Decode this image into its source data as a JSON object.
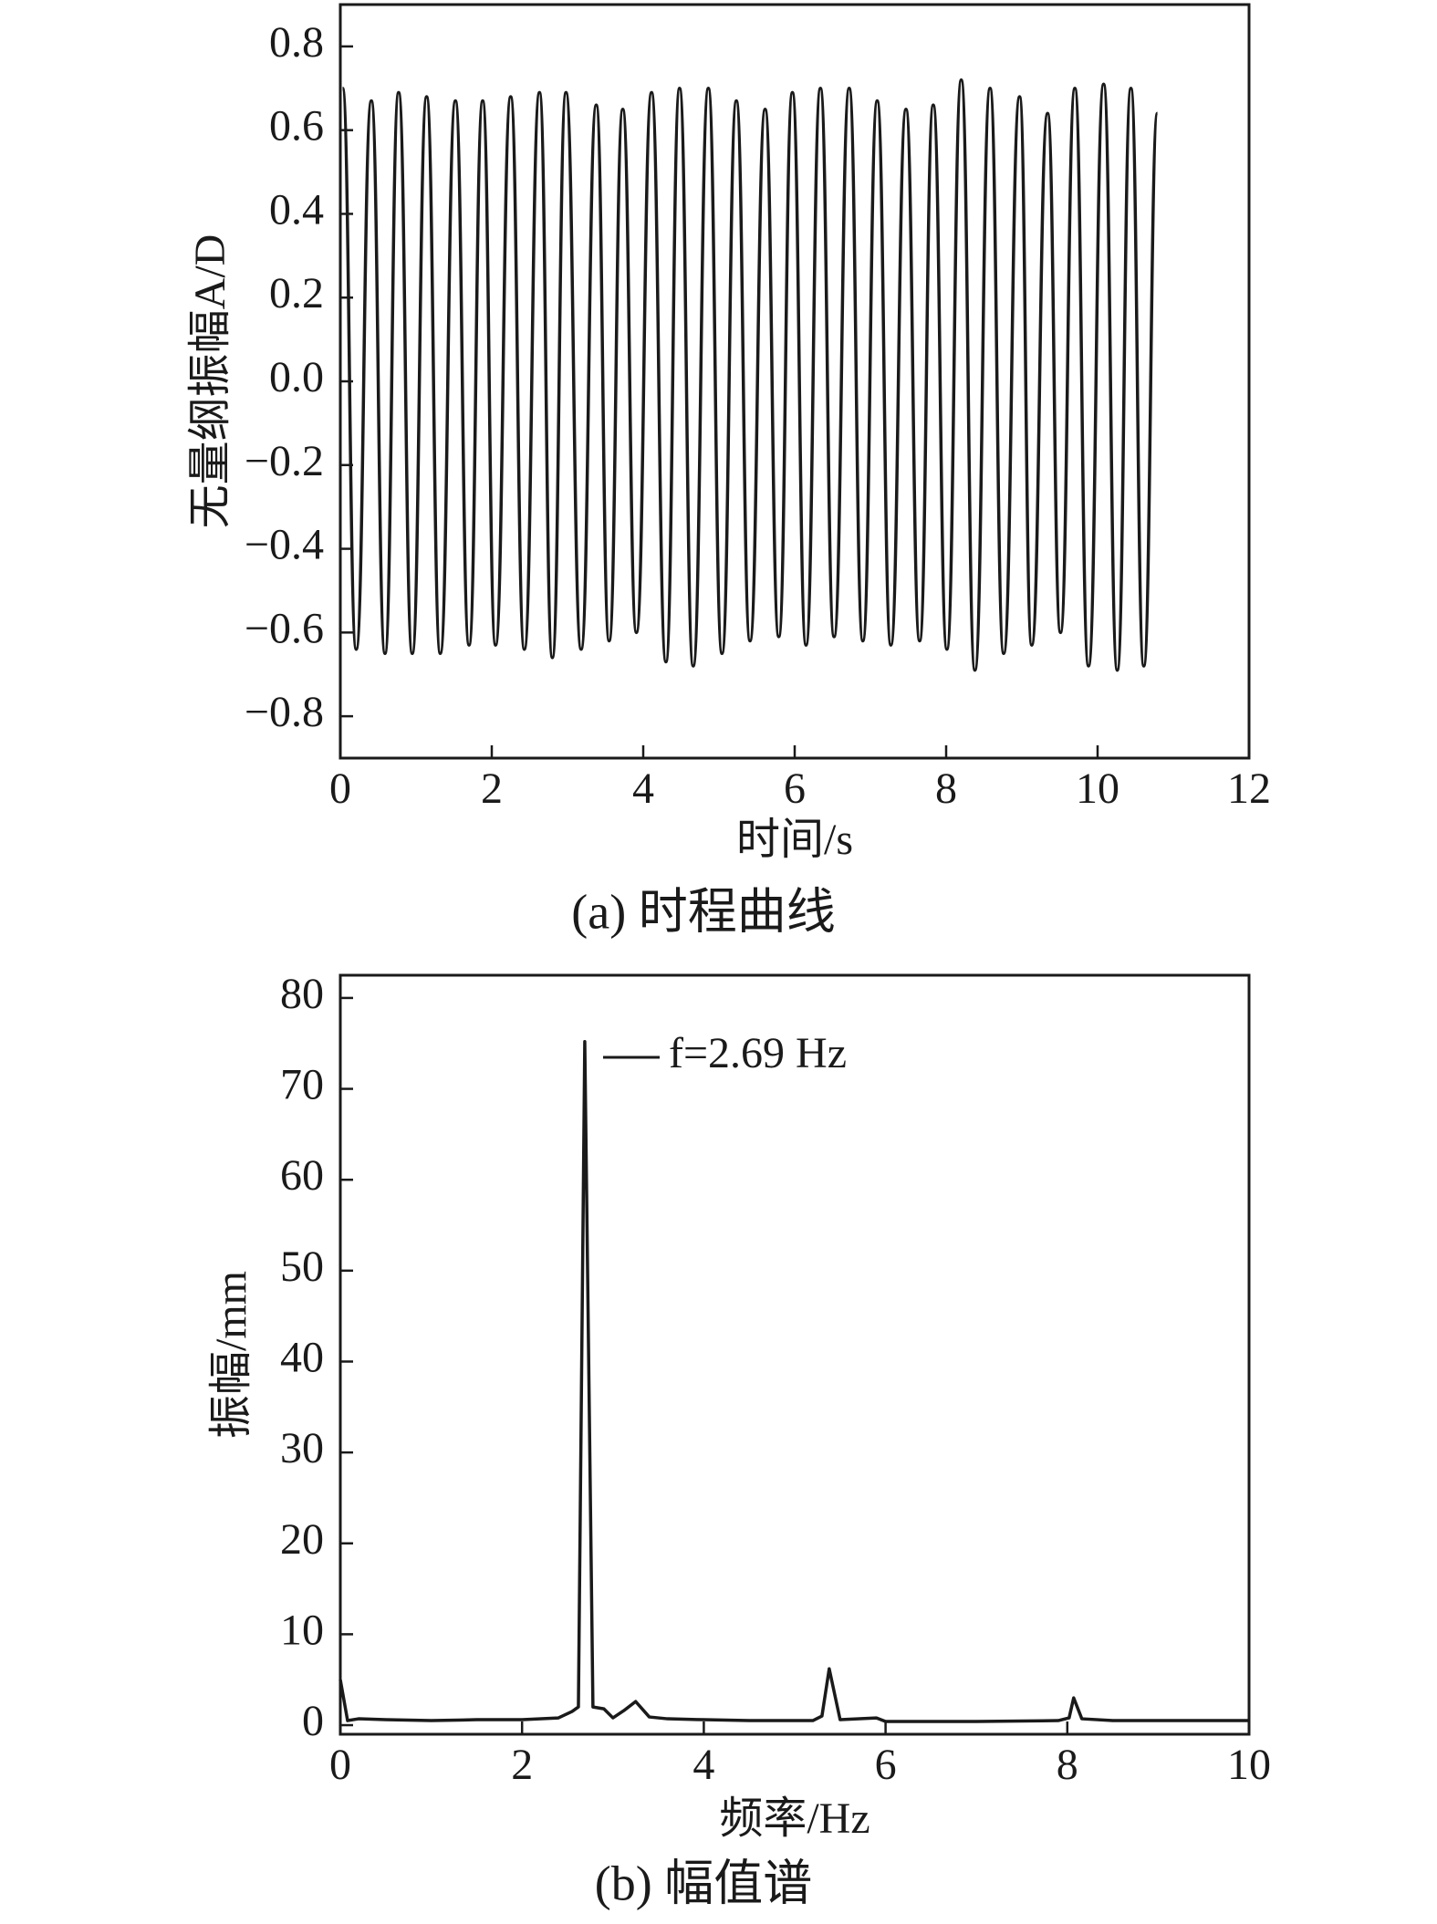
{
  "chart_data": [
    {
      "type": "line",
      "smooth": true,
      "color": "#1a1a1a",
      "caption": "(a) 时程曲线",
      "xlabel": "时间/s",
      "ylabel": "无量纲振幅A/D",
      "xlim": [
        0,
        12
      ],
      "xticks": [
        0,
        2,
        4,
        6,
        8,
        10,
        12
      ],
      "ylim": [
        -0.9,
        0.9
      ],
      "yticks": [
        {
          "value": -0.8,
          "label": "−0.8"
        },
        {
          "value": -0.6,
          "label": "−0.6"
        },
        {
          "value": -0.4,
          "label": "−0.4"
        },
        {
          "value": -0.2,
          "label": "−0.2"
        },
        {
          "value": 0,
          "label": "0.0"
        },
        0.2,
        0.4,
        0.6,
        0.8
      ],
      "x": [
        0.03,
        0.21,
        0.41,
        0.59,
        0.77,
        0.95,
        1.14,
        1.32,
        1.52,
        1.7,
        1.88,
        2.05,
        2.25,
        2.43,
        2.63,
        2.8,
        2.98,
        3.18,
        3.38,
        3.55,
        3.73,
        3.91,
        4.11,
        4.3,
        4.48,
        4.66,
        4.86,
        5.04,
        5.23,
        5.41,
        5.61,
        5.79,
        5.97,
        6.15,
        6.34,
        6.52,
        6.72,
        6.9,
        7.09,
        7.27,
        7.47,
        7.65,
        7.83,
        8.01,
        8.2,
        8.38,
        8.58,
        8.76,
        8.97,
        9.13,
        9.34,
        9.51,
        9.7,
        9.88,
        10.08,
        10.26,
        10.44,
        10.61,
        10.79
      ],
      "values": [
        0.7,
        -0.64,
        0.67,
        -0.65,
        0.69,
        -0.65,
        0.68,
        -0.65,
        0.67,
        -0.63,
        0.67,
        -0.63,
        0.68,
        -0.64,
        0.69,
        -0.66,
        0.69,
        -0.64,
        0.66,
        -0.62,
        0.65,
        -0.6,
        0.69,
        -0.67,
        0.7,
        -0.68,
        0.7,
        -0.65,
        0.67,
        -0.62,
        0.65,
        -0.61,
        0.69,
        -0.63,
        0.7,
        -0.61,
        0.7,
        -0.62,
        0.67,
        -0.63,
        0.65,
        -0.62,
        0.66,
        -0.64,
        0.72,
        -0.69,
        0.7,
        -0.65,
        0.68,
        -0.63,
        0.64,
        -0.6,
        0.7,
        -0.68,
        0.71,
        -0.69,
        0.7,
        -0.68,
        0.64
      ]
    },
    {
      "type": "line",
      "smooth": false,
      "color": "#1a1a1a",
      "caption": "(b) 幅值谱",
      "xlabel": "频率/Hz",
      "ylabel": "振幅/mm",
      "annotation": "f=2.69 Hz",
      "xlim": [
        0,
        10
      ],
      "xticks": [
        0,
        2,
        4,
        6,
        8,
        10
      ],
      "ylim": [
        -1,
        82.5
      ],
      "yticks": [
        0,
        10,
        20,
        30,
        40,
        50,
        60,
        70,
        80
      ],
      "x": [
        0,
        0.08,
        0.2,
        0.5,
        1,
        1.5,
        2,
        2.4,
        2.55,
        2.62,
        2.69,
        2.78,
        2.9,
        3.0,
        3.12,
        3.25,
        3.4,
        3.6,
        4,
        4.5,
        5.2,
        5.3,
        5.38,
        5.5,
        5.9,
        6.0,
        7,
        7.9,
        8.02,
        8.07,
        8.16,
        8.5,
        9,
        10
      ],
      "values": [
        5,
        0.5,
        0.7,
        0.6,
        0.5,
        0.6,
        0.6,
        0.8,
        1.5,
        2,
        75.2,
        2,
        1.8,
        0.8,
        1.6,
        2.6,
        0.9,
        0.7,
        0.6,
        0.5,
        0.5,
        1,
        6.2,
        0.6,
        0.8,
        0.4,
        0.4,
        0.5,
        0.8,
        3,
        0.7,
        0.5,
        0.5,
        0.5
      ]
    }
  ]
}
